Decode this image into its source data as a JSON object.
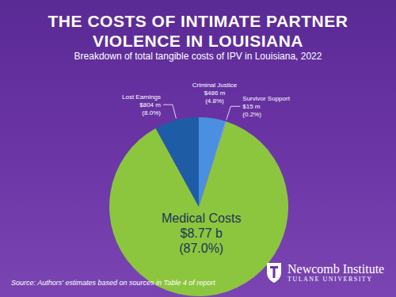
{
  "chart_data": {
    "type": "pie",
    "title": "THE COSTS OF INTIMATE PARTNER VIOLENCE IN LOUISIANA",
    "subtitle": "Breakdown of total tangible costs of IPV in Louisiana, 2022",
    "categories": [
      "Criminal Justice",
      "Survivor Support",
      "Medical Costs",
      "Lost Earnings"
    ],
    "values": [
      4.8,
      0.2,
      87.0,
      8.0
    ],
    "value_labels": [
      "(4.8%)",
      "(0.2%)",
      "(87.0%)",
      "(8.0%)"
    ],
    "amount_labels": [
      "$486 m",
      "$15 m",
      "$8.77 b",
      "$804 m"
    ],
    "colors": [
      "#4a8fe0",
      "#7cb8ec",
      "#8cc63f",
      "#1f5ca6"
    ],
    "data_labels": true,
    "source": "Source: Authors' estimates based on sources in Table 4 of report",
    "logo": [
      "Newcomb Institute",
      "TULANE UNIVERSITY"
    ]
  }
}
